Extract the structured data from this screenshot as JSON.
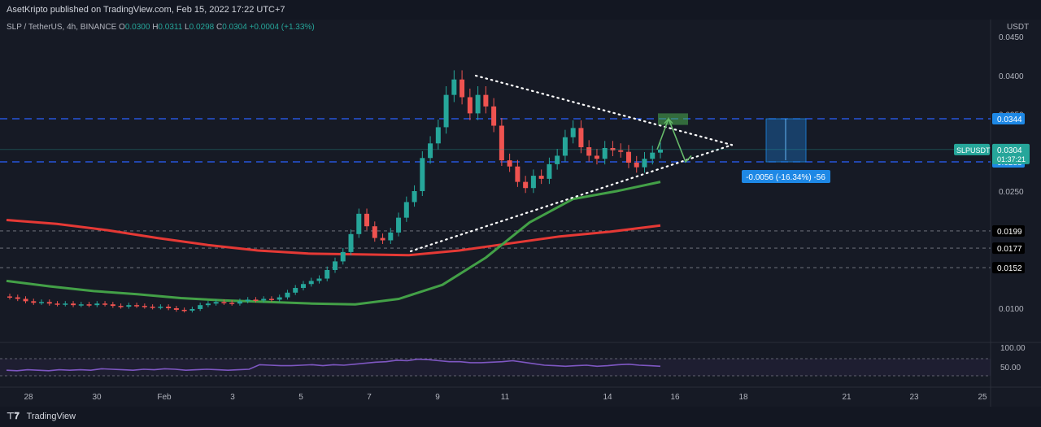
{
  "header": {
    "published": "AsetKripto published on TradingView.com, Feb 15, 2022 17:22 UTC+7"
  },
  "legend": {
    "symbol": "SLP / TetherUS, 4h, BINANCE",
    "o_label": "O",
    "o": "0.0300",
    "h_label": "H",
    "h": "0.0311",
    "l_label": "L",
    "l": "0.0298",
    "c_label": "C",
    "c": "0.0304",
    "change": "+0.0004 (+1.33%)"
  },
  "price_axis": {
    "currency": "USDT",
    "ticks": [
      "0.0450",
      "0.0400",
      "0.0350",
      "0.0250",
      "0.0100"
    ],
    "marked_levels": [
      {
        "label": "0.0344",
        "style": "blue"
      },
      {
        "label": "0.0288",
        "style": "blue"
      },
      {
        "label": "0.0199",
        "style": "dark"
      },
      {
        "label": "0.0177",
        "style": "dark"
      },
      {
        "label": "0.0152",
        "style": "dark"
      }
    ],
    "current_price": {
      "symbol": "SLPUSDT",
      "price": "0.0304",
      "countdown": "01:37:21"
    }
  },
  "rsi_axis": {
    "ticks": [
      "100.00",
      "50.00"
    ]
  },
  "time_axis": {
    "ticks": [
      "28",
      "30",
      "Feb",
      "3",
      "5",
      "7",
      "9",
      "11",
      "14",
      "16",
      "18",
      "21",
      "23",
      "25"
    ]
  },
  "measure_label": "-0.0056 (-16.34%) -56",
  "footer": {
    "brand": "TradingView"
  },
  "colors": {
    "up": "#26a69a",
    "down": "#ef5350",
    "ma_green": "#43a047",
    "ma_red": "#e53935",
    "rsi": "#7e57c2",
    "level_blue": "#2962ff",
    "accent_blue": "#1e88e5"
  },
  "chart_data": {
    "type": "candlestick",
    "title": "",
    "xlabel": "",
    "ylabel": "",
    "ylim": [
      0.007,
      0.046
    ],
    "series": [
      {
        "kind": "candles",
        "ohlc_approx_close": [
          0.0114,
          0.0112,
          0.0109,
          0.0107,
          0.0108,
          0.0106,
          0.0105,
          0.0106,
          0.0104,
          0.0105,
          0.0104,
          0.0106,
          0.0105,
          0.0103,
          0.0102,
          0.0104,
          0.0103,
          0.0102,
          0.0101,
          0.0102,
          0.01,
          0.0098,
          0.0097,
          0.0099,
          0.0104,
          0.0106,
          0.0108,
          0.0107,
          0.0106,
          0.0109,
          0.0111,
          0.011,
          0.0112,
          0.0111,
          0.0114,
          0.012,
          0.0126,
          0.0131,
          0.0135,
          0.0138,
          0.0149,
          0.016,
          0.0172,
          0.0195,
          0.0221,
          0.0205,
          0.019,
          0.0187,
          0.0197,
          0.0216,
          0.0236,
          0.025,
          0.0293,
          0.0312,
          0.0333,
          0.0375,
          0.0395,
          0.0372,
          0.0351,
          0.0375,
          0.036,
          0.0335,
          0.029,
          0.0282,
          0.0262,
          0.0254,
          0.027,
          0.0266,
          0.0285,
          0.0296,
          0.032,
          0.0332,
          0.0307,
          0.0296,
          0.0292,
          0.0306,
          0.0303,
          0.0301,
          0.0287,
          0.0281,
          0.0292,
          0.03,
          0.0304
        ]
      },
      {
        "kind": "ma",
        "color": "green",
        "values_approx": [
          0.0135,
          0.0128,
          0.0122,
          0.0118,
          0.0113,
          0.011,
          0.0108,
          0.0106,
          0.0105,
          0.0112,
          0.013,
          0.0165,
          0.021,
          0.024,
          0.025,
          0.0262
        ]
      },
      {
        "kind": "ma",
        "color": "red",
        "values_approx": [
          0.0213,
          0.0208,
          0.02,
          0.019,
          0.0181,
          0.0174,
          0.017,
          0.0169,
          0.0168,
          0.0174,
          0.0183,
          0.0192,
          0.0198,
          0.0206
        ]
      }
    ],
    "levels": [
      0.0344,
      0.0288,
      0.0199,
      0.0177,
      0.0152
    ],
    "annotations": [
      "symmetrical triangle",
      "measure -0.0056 (-16.34%) -56"
    ]
  }
}
